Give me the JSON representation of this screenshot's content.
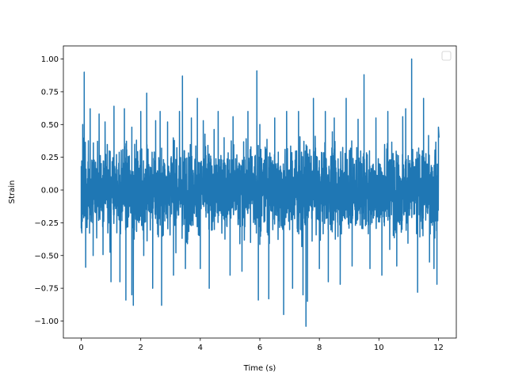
{
  "chart_data": {
    "type": "line",
    "title": "",
    "xlabel": "Time (s)",
    "ylabel": "Strain",
    "xlim": [
      -0.6,
      12.6
    ],
    "ylim": [
      -1.13,
      1.1
    ],
    "x_ticks": [
      0,
      2,
      4,
      6,
      8,
      10,
      12
    ],
    "x_tick_labels": [
      "0",
      "2",
      "4",
      "6",
      "8",
      "10",
      "12"
    ],
    "y_ticks": [
      -1.0,
      -0.75,
      -0.5,
      -0.25,
      0.0,
      0.25,
      0.5,
      0.75,
      1.0
    ],
    "y_tick_labels": [
      "−1.00",
      "−0.75",
      "−0.50",
      "−0.25",
      "0.00",
      "0.25",
      "0.50",
      "0.75",
      "1.00"
    ],
    "grid": false,
    "legend": {
      "placement": "top-right",
      "entries": []
    },
    "series": [
      {
        "color": "#1f77b4",
        "description_note_free": true,
        "x_range": [
          0,
          12
        ],
        "points": [
          [
            0.0,
            -0.29
          ],
          [
            0.05,
            0.5
          ],
          [
            0.1,
            0.9
          ],
          [
            0.15,
            -0.59
          ],
          [
            0.3,
            0.62
          ],
          [
            0.4,
            -0.5
          ],
          [
            0.6,
            0.58
          ],
          [
            0.8,
            0.52
          ],
          [
            1.0,
            -0.7
          ],
          [
            1.1,
            0.64
          ],
          [
            1.3,
            -0.7
          ],
          [
            1.45,
            0.62
          ],
          [
            1.5,
            -0.84
          ],
          [
            1.7,
            0.48
          ],
          [
            1.7,
            -0.8
          ],
          [
            1.75,
            -0.88
          ],
          [
            2.0,
            0.6
          ],
          [
            2.1,
            -0.5
          ],
          [
            2.2,
            0.74
          ],
          [
            2.4,
            -0.75
          ],
          [
            2.5,
            0.53
          ],
          [
            2.65,
            0.6
          ],
          [
            2.7,
            -0.88
          ],
          [
            2.9,
            0.52
          ],
          [
            3.1,
            -0.65
          ],
          [
            3.3,
            0.6
          ],
          [
            3.4,
            0.87
          ],
          [
            3.5,
            -0.6
          ],
          [
            3.7,
            0.55
          ],
          [
            3.9,
            0.7
          ],
          [
            4.0,
            -0.6
          ],
          [
            4.1,
            0.53
          ],
          [
            4.3,
            -0.75
          ],
          [
            4.6,
            0.6
          ],
          [
            4.8,
            0.4
          ],
          [
            5.0,
            -0.65
          ],
          [
            5.1,
            0.56
          ],
          [
            5.4,
            -0.62
          ],
          [
            5.6,
            0.6
          ],
          [
            5.9,
            0.91
          ],
          [
            5.95,
            -0.84
          ],
          [
            6.0,
            0.5
          ],
          [
            6.3,
            -0.83
          ],
          [
            6.5,
            0.55
          ],
          [
            6.8,
            -0.95
          ],
          [
            6.9,
            0.6
          ],
          [
            7.1,
            -0.75
          ],
          [
            7.3,
            0.6
          ],
          [
            7.45,
            -0.8
          ],
          [
            7.55,
            -1.04
          ],
          [
            7.6,
            -0.85
          ],
          [
            7.8,
            0.7
          ],
          [
            8.0,
            -0.6
          ],
          [
            8.2,
            0.6
          ],
          [
            8.3,
            -0.7
          ],
          [
            8.5,
            0.55
          ],
          [
            8.7,
            -0.72
          ],
          [
            8.9,
            0.7
          ],
          [
            9.1,
            -0.58
          ],
          [
            9.3,
            0.54
          ],
          [
            9.5,
            0.88
          ],
          [
            9.7,
            -0.6
          ],
          [
            9.9,
            0.55
          ],
          [
            10.1,
            -0.65
          ],
          [
            10.3,
            0.6
          ],
          [
            10.6,
            -0.58
          ],
          [
            10.8,
            0.56
          ],
          [
            10.9,
            0.62
          ],
          [
            11.1,
            1.0
          ],
          [
            11.3,
            -0.78
          ],
          [
            11.5,
            0.7
          ],
          [
            11.7,
            -0.55
          ],
          [
            11.85,
            -0.6
          ],
          [
            11.95,
            -0.72
          ],
          [
            12.0,
            0.48
          ],
          [
            12.02,
            0.4
          ]
        ],
        "envelope": {
          "typical_max": 0.5,
          "typical_min": -0.5
        }
      }
    ]
  }
}
